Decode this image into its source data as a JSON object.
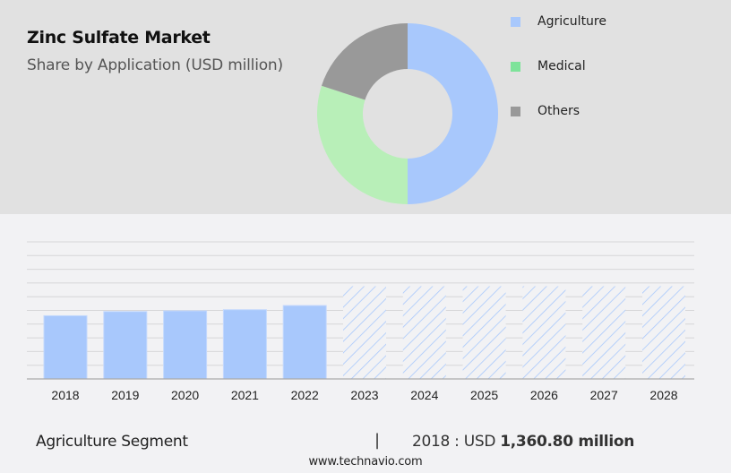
{
  "header": {
    "title": "Zinc Sulfate Market",
    "subtitle": "Share by Application (USD million)"
  },
  "legend": [
    {
      "label": "Agriculture",
      "color": "#a8c8fc"
    },
    {
      "label": "Medical",
      "color": "#7ee39a"
    },
    {
      "label": "Others",
      "color": "#999999"
    }
  ],
  "footer": {
    "segment": "Agriculture Segment",
    "separator": "|",
    "value_prefix": "2018 : USD ",
    "value_bold": "1,360.80 million",
    "url": "www.technavio.com"
  },
  "chart_data": [
    {
      "type": "pie",
      "title": "Share by Application (USD million)",
      "donut": true,
      "categories": [
        "Agriculture",
        "Medical",
        "Others"
      ],
      "values": [
        50,
        30,
        20
      ],
      "unit": "approx. % share",
      "colors": [
        "#a8c8fc",
        "#b8efb8",
        "#999999"
      ]
    },
    {
      "type": "bar",
      "title": "Agriculture Segment",
      "categories": [
        "2018",
        "2019",
        "2020",
        "2021",
        "2022",
        "2023",
        "2024",
        "2025",
        "2026",
        "2027",
        "2028"
      ],
      "values": [
        1360.8,
        1450,
        1465,
        1490,
        1580,
        null,
        null,
        null,
        null,
        null,
        null
      ],
      "forecast": [
        false,
        false,
        false,
        false,
        false,
        true,
        true,
        true,
        true,
        true,
        true
      ],
      "forecast_display_height": 1995,
      "annotation": "2018 : USD 1,360.80 million",
      "ylim": [
        0,
        2950
      ],
      "grid": true,
      "gridlines": 10,
      "bar_color": "#a8c8fc"
    }
  ]
}
